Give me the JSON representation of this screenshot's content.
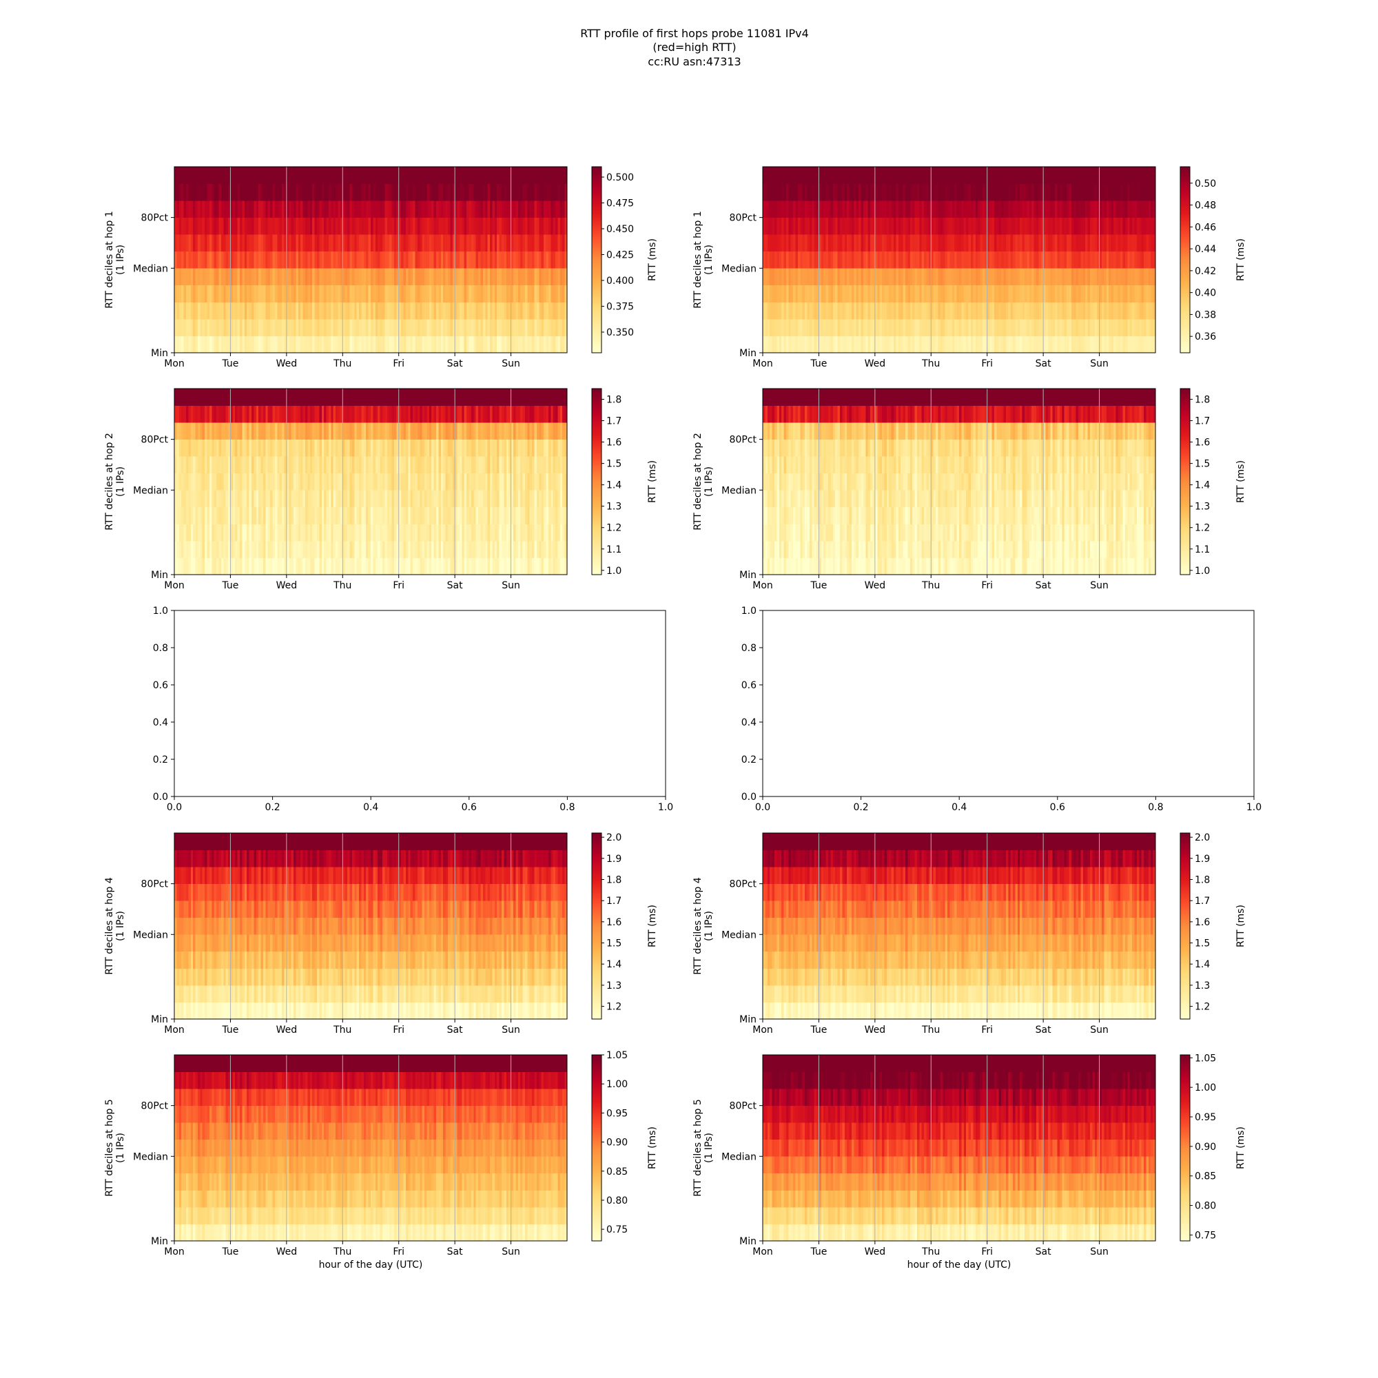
{
  "title_lines": [
    "RTT profile of first hops probe 11081 IPv4",
    "(red=high RTT)",
    "cc:RU asn:47313"
  ],
  "colors": {
    "low": "#ffffcc",
    "mid": "#fd8d3c",
    "high": "#800026",
    "grid": "#b0b0b0"
  },
  "chart_data": [
    {
      "type": "heatmap",
      "panel": "hop1-left",
      "ylabel": "RTT deciles at hop 1",
      "ylabel2": "(1 IPs)",
      "yticks": [
        "Min",
        "Median",
        "80Pct"
      ],
      "xticks": [
        "Mon",
        "Tue",
        "Wed",
        "Thu",
        "Fri",
        "Sat",
        "Sun"
      ],
      "xlabel": "",
      "colorbar": {
        "label": "RTT (ms)",
        "range": [
          0.33,
          0.51
        ],
        "ticks": [
          "0.350",
          "0.375",
          "0.400",
          "0.425",
          "0.450",
          "0.475",
          "0.500"
        ],
        "tick_values": [
          0.35,
          0.375,
          0.4,
          0.425,
          0.45,
          0.475,
          0.5
        ]
      },
      "profile": [
        0.1,
        0.2,
        0.28,
        0.36,
        0.45,
        0.64,
        0.72,
        0.8,
        0.88,
        1.0,
        1.0
      ],
      "noise": 0.07,
      "seed": 11
    },
    {
      "type": "heatmap",
      "panel": "hop1-right",
      "ylabel": "RTT deciles at hop 1",
      "ylabel2": "(1 IPs)",
      "yticks": [
        "Min",
        "Median",
        "80Pct"
      ],
      "xticks": [
        "Mon",
        "Tue",
        "Wed",
        "Thu",
        "Fri",
        "Sat",
        "Sun"
      ],
      "xlabel": "",
      "colorbar": {
        "label": "RTT (ms)",
        "range": [
          0.345,
          0.515
        ],
        "ticks": [
          "0.36",
          "0.38",
          "0.40",
          "0.42",
          "0.44",
          "0.46",
          "0.48",
          "0.50"
        ],
        "tick_values": [
          0.36,
          0.38,
          0.4,
          0.42,
          0.44,
          0.46,
          0.48,
          0.5
        ]
      },
      "profile": [
        0.1,
        0.2,
        0.28,
        0.36,
        0.45,
        0.66,
        0.74,
        0.82,
        0.9,
        1.0,
        1.0
      ],
      "noise": 0.05,
      "seed": 12
    },
    {
      "type": "heatmap",
      "panel": "hop2-left",
      "ylabel": "RTT deciles at hop 2",
      "ylabel2": "(1 IPs)",
      "yticks": [
        "Min",
        "Median",
        "80Pct"
      ],
      "xticks": [
        "Mon",
        "Tue",
        "Wed",
        "Thu",
        "Fri",
        "Sat",
        "Sun"
      ],
      "xlabel": "",
      "colorbar": {
        "label": "RTT (ms)",
        "range": [
          0.98,
          1.85
        ],
        "ticks": [
          "1.0",
          "1.1",
          "1.2",
          "1.3",
          "1.4",
          "1.5",
          "1.6",
          "1.7",
          "1.8"
        ],
        "tick_values": [
          1.0,
          1.1,
          1.2,
          1.3,
          1.4,
          1.5,
          1.6,
          1.7,
          1.8
        ]
      },
      "profile": [
        0.04,
        0.08,
        0.1,
        0.12,
        0.14,
        0.16,
        0.18,
        0.22,
        0.38,
        0.78,
        1.0
      ],
      "noise": 0.1,
      "seed": 21
    },
    {
      "type": "heatmap",
      "panel": "hop2-right",
      "ylabel": "RTT deciles at hop 2",
      "ylabel2": "(1 IPs)",
      "yticks": [
        "Min",
        "Median",
        "80Pct"
      ],
      "xticks": [
        "Mon",
        "Tue",
        "Wed",
        "Thu",
        "Fri",
        "Sat",
        "Sun"
      ],
      "xlabel": "",
      "colorbar": {
        "label": "RTT (ms)",
        "range": [
          0.98,
          1.85
        ],
        "ticks": [
          "1.0",
          "1.1",
          "1.2",
          "1.3",
          "1.4",
          "1.5",
          "1.6",
          "1.7",
          "1.8"
        ],
        "tick_values": [
          1.0,
          1.1,
          1.2,
          1.3,
          1.4,
          1.5,
          1.6,
          1.7,
          1.8
        ]
      },
      "profile": [
        0.04,
        0.07,
        0.09,
        0.11,
        0.13,
        0.15,
        0.17,
        0.2,
        0.3,
        0.78,
        1.0
      ],
      "noise": 0.1,
      "seed": 22
    },
    {
      "type": "empty",
      "panel": "hop3-left",
      "xticks": [
        "0.0",
        "0.2",
        "0.4",
        "0.6",
        "0.8",
        "1.0"
      ],
      "yticks": [
        "0.0",
        "0.2",
        "0.4",
        "0.6",
        "0.8",
        "1.0"
      ],
      "xlim": [
        0,
        1
      ],
      "ylim": [
        0,
        1
      ]
    },
    {
      "type": "empty",
      "panel": "hop3-right",
      "xticks": [
        "0.0",
        "0.2",
        "0.4",
        "0.6",
        "0.8",
        "1.0"
      ],
      "yticks": [
        "0.0",
        "0.2",
        "0.4",
        "0.6",
        "0.8",
        "1.0"
      ],
      "xlim": [
        0,
        1
      ],
      "ylim": [
        0,
        1
      ]
    },
    {
      "type": "heatmap",
      "panel": "hop4-left",
      "ylabel": "RTT deciles at hop 4",
      "ylabel2": "(1 IPs)",
      "yticks": [
        "Min",
        "Median",
        "80Pct"
      ],
      "xticks": [
        "Mon",
        "Tue",
        "Wed",
        "Thu",
        "Fri",
        "Sat",
        "Sun"
      ],
      "xlabel": "",
      "colorbar": {
        "label": "RTT (ms)",
        "range": [
          1.14,
          2.02
        ],
        "ticks": [
          "1.2",
          "1.3",
          "1.4",
          "1.5",
          "1.6",
          "1.7",
          "1.8",
          "1.9",
          "2.0"
        ],
        "tick_values": [
          1.2,
          1.3,
          1.4,
          1.5,
          1.6,
          1.7,
          1.8,
          1.9,
          2.0
        ]
      },
      "profile": [
        0.04,
        0.16,
        0.26,
        0.34,
        0.42,
        0.48,
        0.55,
        0.62,
        0.72,
        0.88,
        1.0
      ],
      "noise": 0.08,
      "seed": 41
    },
    {
      "type": "heatmap",
      "panel": "hop4-right",
      "ylabel": "RTT deciles at hop 4",
      "ylabel2": "(1 IPs)",
      "yticks": [
        "Min",
        "Median",
        "80Pct"
      ],
      "xticks": [
        "Mon",
        "Tue",
        "Wed",
        "Thu",
        "Fri",
        "Sat",
        "Sun"
      ],
      "xlabel": "",
      "colorbar": {
        "label": "RTT (ms)",
        "range": [
          1.14,
          2.02
        ],
        "ticks": [
          "1.2",
          "1.3",
          "1.4",
          "1.5",
          "1.6",
          "1.7",
          "1.8",
          "1.9",
          "2.0"
        ],
        "tick_values": [
          1.2,
          1.3,
          1.4,
          1.5,
          1.6,
          1.7,
          1.8,
          1.9,
          2.0
        ]
      },
      "profile": [
        0.04,
        0.16,
        0.26,
        0.34,
        0.42,
        0.48,
        0.55,
        0.62,
        0.74,
        0.9,
        1.0
      ],
      "noise": 0.08,
      "seed": 42
    },
    {
      "type": "heatmap",
      "panel": "hop5-left",
      "ylabel": "RTT deciles at hop 5",
      "ylabel2": "(1 IPs)",
      "yticks": [
        "Min",
        "Median",
        "80Pct"
      ],
      "xticks": [
        "Mon",
        "Tue",
        "Wed",
        "Thu",
        "Fri",
        "Sat",
        "Sun"
      ],
      "xlabel": "hour of the day (UTC)",
      "colorbar": {
        "label": "RTT (ms)",
        "range": [
          0.73,
          1.05
        ],
        "ticks": [
          "0.75",
          "0.80",
          "0.85",
          "0.90",
          "0.95",
          "1.00",
          "1.05"
        ],
        "tick_values": [
          0.75,
          0.8,
          0.85,
          0.9,
          0.95,
          1.0,
          1.05
        ]
      },
      "profile": [
        0.08,
        0.2,
        0.28,
        0.34,
        0.4,
        0.46,
        0.52,
        0.58,
        0.66,
        0.82,
        1.0
      ],
      "noise": 0.07,
      "seed": 51
    },
    {
      "type": "heatmap",
      "panel": "hop5-right",
      "ylabel": "RTT deciles at hop 5",
      "ylabel2": "(1 IPs)",
      "yticks": [
        "Min",
        "Median",
        "80Pct"
      ],
      "xticks": [
        "Mon",
        "Tue",
        "Wed",
        "Thu",
        "Fri",
        "Sat",
        "Sun"
      ],
      "xlabel": "hour of the day (UTC)",
      "colorbar": {
        "label": "RTT (ms)",
        "range": [
          0.74,
          1.055
        ],
        "ticks": [
          "0.75",
          "0.80",
          "0.85",
          "0.90",
          "0.95",
          "1.00",
          "1.05"
        ],
        "tick_values": [
          0.75,
          0.8,
          0.85,
          0.9,
          0.95,
          1.0,
          1.05
        ]
      },
      "profile": [
        0.1,
        0.24,
        0.36,
        0.46,
        0.56,
        0.64,
        0.72,
        0.8,
        0.9,
        1.0,
        1.0
      ],
      "noise": 0.08,
      "seed": 52
    }
  ]
}
